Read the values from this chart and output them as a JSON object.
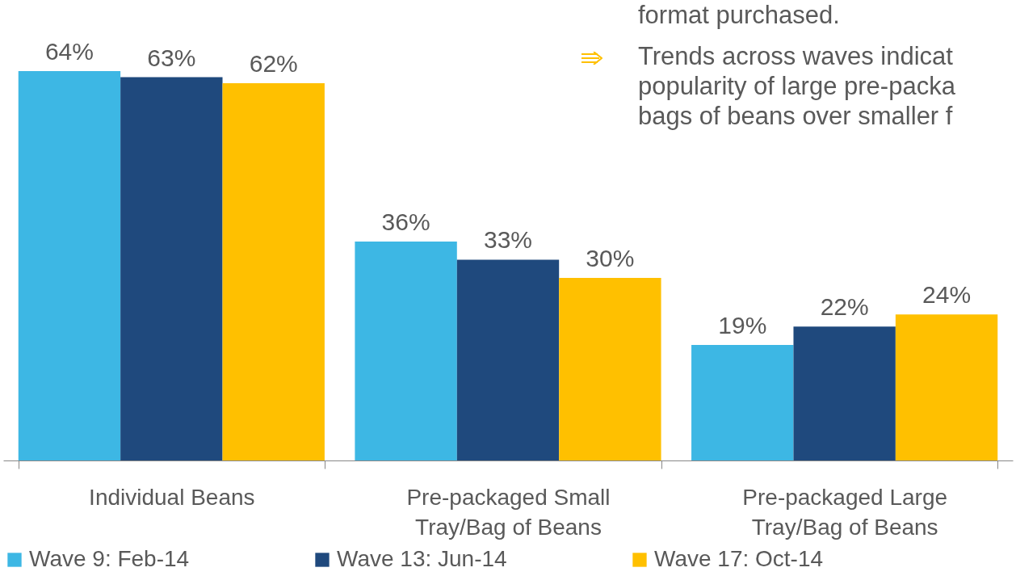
{
  "chart_data": {
    "type": "bar",
    "categories": [
      "Individual Beans",
      "Pre-packaged Small Tray/Bag of Beans",
      "Pre-packaged Large Tray/Bag of Beans"
    ],
    "series": [
      {
        "name": "Wave 9: Feb-14",
        "color": "#3db7e4",
        "values": [
          64,
          36,
          19
        ],
        "value_labels": [
          "64%",
          "36%",
          "19%"
        ]
      },
      {
        "name": "Wave 13: Jun-14",
        "color": "#1f497d",
        "values": [
          63,
          33,
          22
        ],
        "value_labels": [
          "63%",
          "33%",
          "22%"
        ]
      },
      {
        "name": "Wave 17: Oct-14",
        "color": "#ffc000",
        "values": [
          62,
          30,
          24
        ],
        "value_labels": [
          "62%",
          "30%",
          "24%"
        ]
      }
    ],
    "annotations": [
      "format purchased.",
      "Trends across waves indicat popularity of large pre-packa bags of beans over smaller f"
    ],
    "legend": "bottom",
    "grid": false,
    "tick_labels": "x"
  }
}
